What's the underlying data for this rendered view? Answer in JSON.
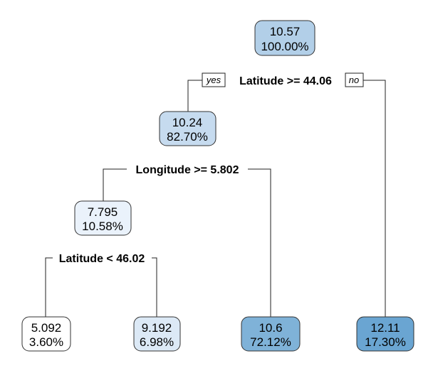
{
  "colors": {
    "fill_scale": [
      "#ffffff",
      "#eaf2fb",
      "#dce9f6",
      "#c6dbef",
      "#b2cfe8",
      "#7fb2d8",
      "#6aa5d2"
    ]
  },
  "branch_labels": {
    "yes": "yes",
    "no": "no"
  },
  "splits": [
    {
      "id": "s1",
      "label": "Latitude >= 44.06"
    },
    {
      "id": "s2",
      "label": "Longitude >= 5.802"
    },
    {
      "id": "s3",
      "label": "Latitude < 46.02"
    }
  ],
  "nodes": [
    {
      "id": "n1",
      "value": "10.57",
      "percent": "100.00%",
      "color": "#b2cfe8"
    },
    {
      "id": "n2",
      "value": "10.24",
      "percent": "82.70%",
      "color": "#c6dbef"
    },
    {
      "id": "n3",
      "value": "7.795",
      "percent": "10.58%",
      "color": "#eaf2fb"
    },
    {
      "id": "n4",
      "value": "5.092",
      "percent": "3.60%",
      "color": "#ffffff"
    },
    {
      "id": "n5",
      "value": "9.192",
      "percent": "6.98%",
      "color": "#dce9f6"
    },
    {
      "id": "n6",
      "value": "10.6",
      "percent": "72.12%",
      "color": "#7fb2d8"
    },
    {
      "id": "n7",
      "value": "12.11",
      "percent": "17.30%",
      "color": "#6aa5d2"
    }
  ]
}
